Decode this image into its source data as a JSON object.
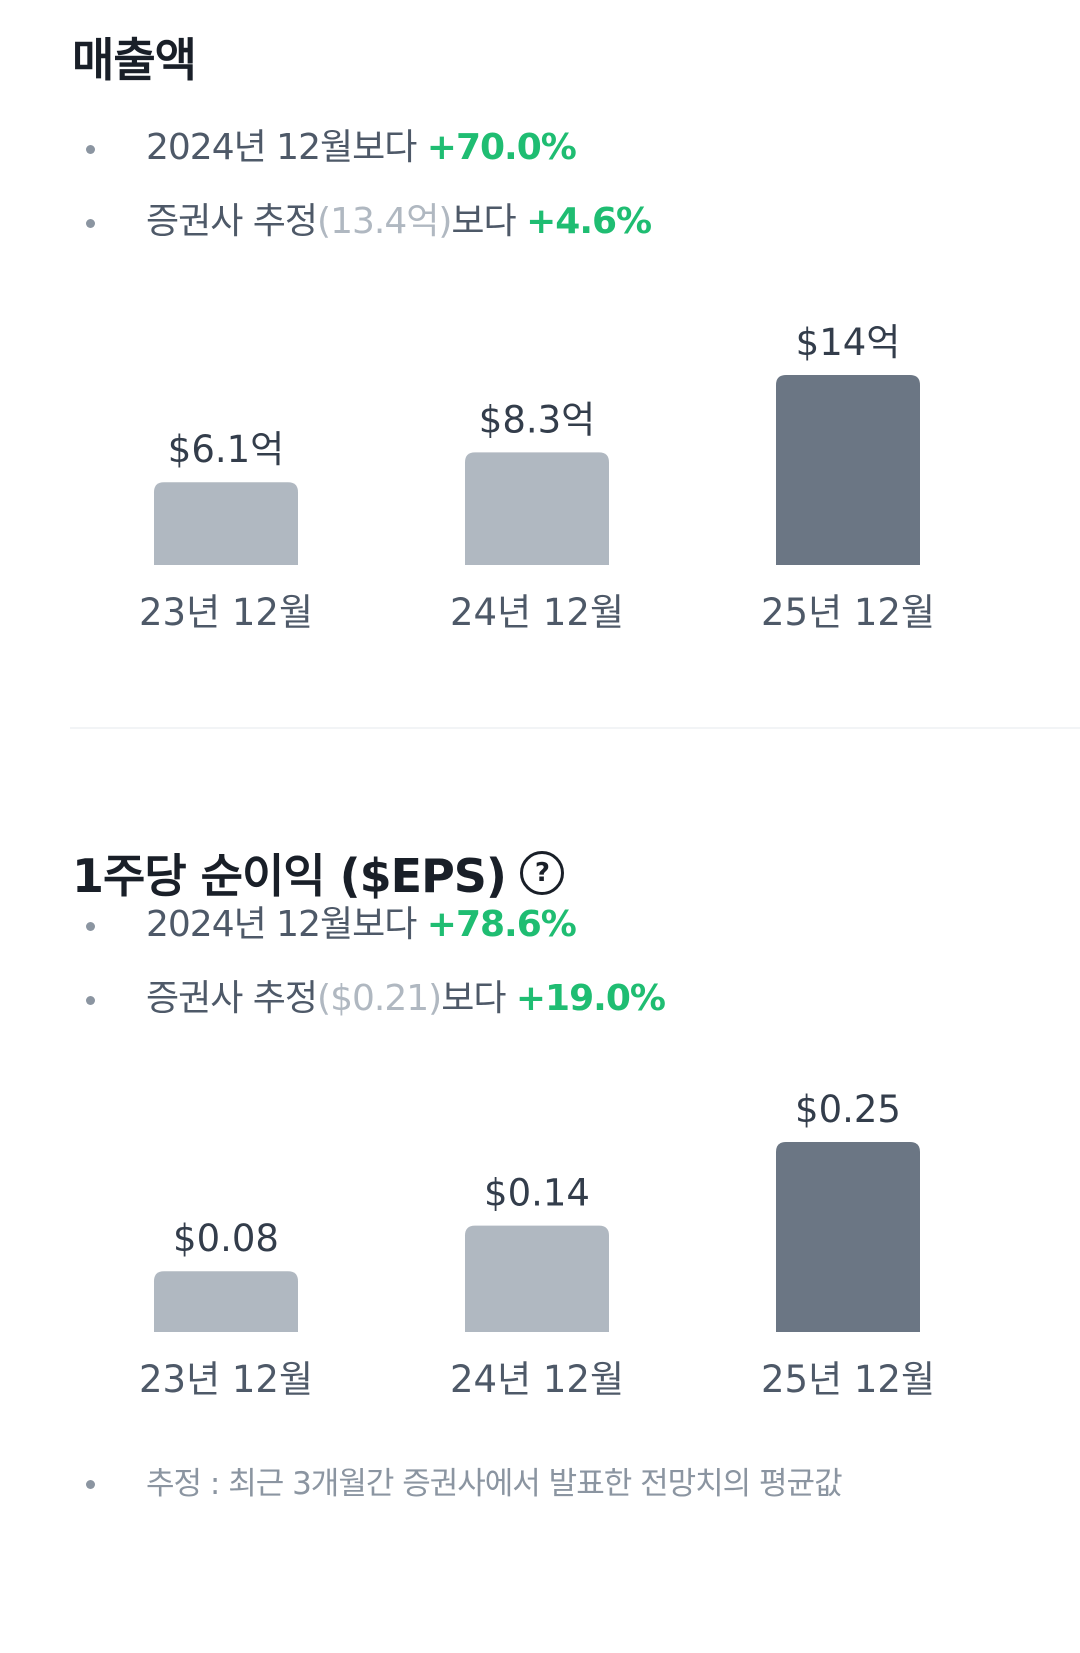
{
  "revenue": {
    "title": "매출액",
    "bullet1": {
      "text": "2024년 12월보다 ",
      "change": "+70.0%"
    },
    "bullet2": {
      "prefix": "증권사 추정",
      "estimate": "(13.4억)",
      "suffix": "보다 ",
      "change": "+4.6%"
    }
  },
  "eps": {
    "title": "1주당 순이익 ($EPS)",
    "help_icon_glyph": "?",
    "bullet1": {
      "text": "2024년 12월보다 ",
      "change": "+78.6%"
    },
    "bullet2": {
      "prefix": "증권사 추정",
      "estimate": "($0.21)",
      "suffix": "보다 ",
      "change": "+19.0%"
    }
  },
  "footnote": "추정 : 최근 3개월간 증권사에서 발표한 전망치의 평균값",
  "colors": {
    "bar_past": "#b0b8c1",
    "bar_current": "#6b7684",
    "positive": "#1fbd72",
    "muted": "#b0b8c1",
    "text": "#4e5968",
    "title": "#191f28"
  },
  "chart_data": [
    {
      "type": "bar",
      "title": "",
      "categories": [
        "23년 12월",
        "24년 12월",
        "25년 12월"
      ],
      "values": [
        6.1,
        8.3,
        14
      ],
      "value_labels": [
        "$6.1억",
        "$8.3억",
        "$14억"
      ],
      "highlight_index": 2
    },
    {
      "type": "bar",
      "title": "",
      "categories": [
        "23년 12월",
        "24년 12월",
        "25년 12월"
      ],
      "values": [
        0.08,
        0.14,
        0.25
      ],
      "value_labels": [
        "$0.08",
        "$0.14",
        "$0.25"
      ],
      "highlight_index": 2
    }
  ]
}
